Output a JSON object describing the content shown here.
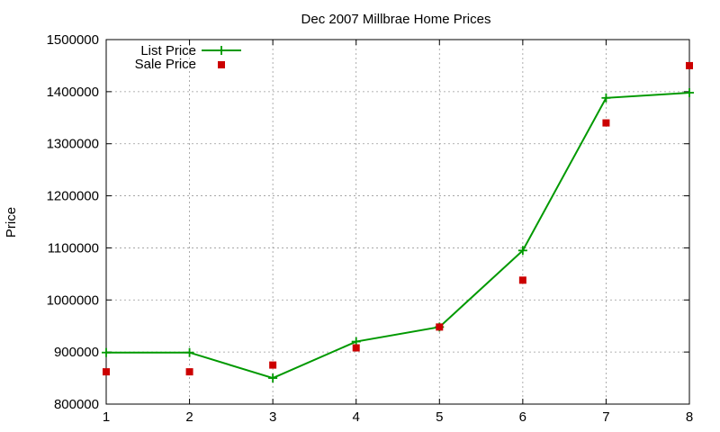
{
  "chart_data": {
    "type": "line",
    "title": "Dec 2007 Millbrae Home Prices",
    "xlabel": "",
    "ylabel": "Price",
    "x": [
      1,
      2,
      3,
      4,
      5,
      6,
      7,
      8
    ],
    "xlim": [
      1,
      8
    ],
    "ylim": [
      800000,
      1500000
    ],
    "x_ticks": [
      "1",
      "2",
      "3",
      "4",
      "5",
      "6",
      "7",
      "8"
    ],
    "y_ticks": [
      "800000",
      "900000",
      "1000000",
      "1100000",
      "1200000",
      "1300000",
      "1400000",
      "1500000"
    ],
    "grid": true,
    "legend_position": "top-left",
    "series": [
      {
        "name": "List Price",
        "style": "line-plus",
        "color": "#009900",
        "values": [
          899000,
          899000,
          850000,
          920000,
          948000,
          1095000,
          1388000,
          1398000
        ]
      },
      {
        "name": "Sale Price",
        "style": "square-points",
        "color": "#cc0000",
        "values": [
          862000,
          862000,
          875000,
          908000,
          948000,
          1038000,
          1340000,
          1450000
        ]
      }
    ]
  }
}
